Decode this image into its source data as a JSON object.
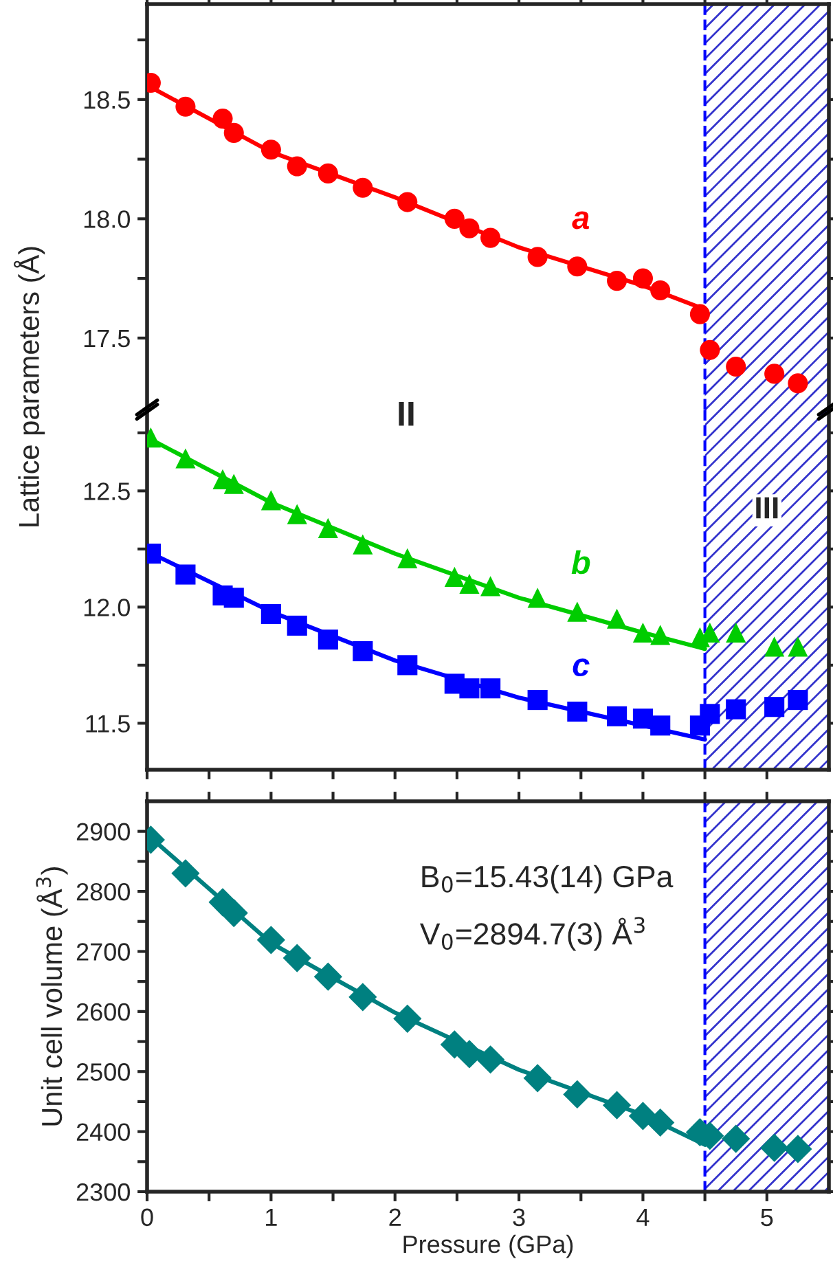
{
  "chart_data": [
    {
      "type": "scatter",
      "ylabel": "Lattice parameters (Å)",
      "xlim": [
        0,
        5.5
      ],
      "ylim": [
        17.2,
        18.9
      ],
      "tick_labels": "y",
      "grid": false,
      "legend": false,
      "xticks": [
        0,
        {
          "value": 0.5,
          "label": null
        },
        1,
        {
          "value": 1.5,
          "label": null
        },
        2,
        {
          "value": 2.5,
          "label": null
        },
        3,
        {
          "value": 3.5,
          "label": null
        },
        4,
        {
          "value": 4.5,
          "label": null
        },
        5
      ],
      "yticks": [
        {
          "value": 17.5,
          "label": "17.5"
        },
        {
          "value": 17.75,
          "label": null
        },
        {
          "value": 18.0,
          "label": "18.0"
        },
        {
          "value": 18.25,
          "label": null
        },
        {
          "value": 18.5,
          "label": "18.5"
        },
        {
          "value": 18.75,
          "label": null
        }
      ],
      "x": [
        0.03,
        0.31,
        0.61,
        0.7,
        1.0,
        1.21,
        1.46,
        1.74,
        2.1,
        2.48,
        2.6,
        2.77,
        3.15,
        3.47,
        3.79,
        4.0,
        4.14,
        4.46,
        4.54,
        4.75,
        5.06,
        5.25
      ],
      "series": [
        {
          "name": "a",
          "marker": "circle",
          "color": "#ff0000",
          "values": [
            18.57,
            18.47,
            18.42,
            18.36,
            18.29,
            18.22,
            18.19,
            18.13,
            18.07,
            18.0,
            17.96,
            17.92,
            17.84,
            17.8,
            17.74,
            17.75,
            17.7,
            17.6,
            17.45,
            17.38,
            17.35,
            17.31
          ]
        },
        {
          "type": "line",
          "color": "#ff0000",
          "x": [
            0,
            1,
            2,
            3,
            4,
            4.5
          ],
          "values": [
            18.56,
            18.28,
            18.09,
            17.88,
            17.72,
            17.62
          ]
        }
      ],
      "bands": [
        {
          "axis": "x",
          "from": 4.5,
          "to": 5.5,
          "color": "#3333cc"
        }
      ],
      "ref_lines": [
        {
          "axis": "x",
          "value": 4.5,
          "color": "#0000ff",
          "line_style": "dashed"
        }
      ]
    },
    {
      "type": "scatter",
      "xlim": [
        0,
        5.5
      ],
      "ylim": [
        11.3,
        12.85
      ],
      "tick_labels": "y",
      "grid": false,
      "legend": false,
      "xticks": [
        0,
        {
          "value": 0.5,
          "label": null
        },
        1,
        {
          "value": 1.5,
          "label": null
        },
        2,
        {
          "value": 2.5,
          "label": null
        },
        3,
        {
          "value": 3.5,
          "label": null
        },
        4,
        {
          "value": 4.5,
          "label": null
        },
        5
      ],
      "yticks": [
        {
          "value": 11.5,
          "label": "11.5"
        },
        {
          "value": 11.75,
          "label": null
        },
        {
          "value": 12.0,
          "label": "12.0"
        },
        {
          "value": 12.25,
          "label": null
        },
        {
          "value": 12.5,
          "label": "12.5"
        },
        {
          "value": 12.75,
          "label": null
        }
      ],
      "x": [
        0.03,
        0.31,
        0.61,
        0.7,
        1.0,
        1.21,
        1.46,
        1.74,
        2.1,
        2.48,
        2.6,
        2.77,
        3.15,
        3.47,
        3.79,
        4.0,
        4.14,
        4.46,
        4.54,
        4.75,
        5.06,
        5.25
      ],
      "annotations": [
        "II"
      ],
      "series": [
        {
          "name": "b",
          "marker": "triangle",
          "color": "#00cc00",
          "values": [
            12.73,
            12.64,
            12.55,
            12.53,
            12.46,
            12.4,
            12.34,
            12.27,
            12.21,
            12.13,
            12.1,
            12.09,
            12.04,
            11.98,
            11.95,
            11.89,
            11.88,
            11.87,
            11.89,
            11.89,
            11.83,
            11.83
          ]
        },
        {
          "type": "line",
          "color": "#00cc00",
          "x": [
            0,
            1,
            2,
            3,
            4,
            4.5
          ],
          "values": [
            12.73,
            12.45,
            12.23,
            12.04,
            11.89,
            11.82
          ]
        },
        {
          "name": "c",
          "marker": "square",
          "color": "#0000ff",
          "values": [
            12.23,
            12.14,
            12.05,
            12.04,
            11.97,
            11.92,
            11.86,
            11.81,
            11.75,
            11.67,
            11.65,
            11.65,
            11.6,
            11.55,
            11.53,
            11.52,
            11.49,
            11.49,
            11.54,
            11.56,
            11.57,
            11.6
          ]
        },
        {
          "type": "line",
          "color": "#0000ff",
          "x": [
            0,
            1,
            2,
            3,
            4,
            4.5
          ],
          "values": [
            12.24,
            11.98,
            11.77,
            11.61,
            11.49,
            11.43
          ]
        }
      ],
      "bands": [
        {
          "axis": "x",
          "from": 4.5,
          "to": 5.5,
          "label": "III",
          "color": "#3333cc"
        }
      ],
      "ref_lines": [
        {
          "axis": "x",
          "value": 4.5,
          "color": "#0000ff",
          "line_style": "dashed"
        }
      ]
    },
    {
      "type": "scatter",
      "xlabel": "Pressure (GPa)",
      "ylabel": "Unit cell volume (Å$^{3}$)",
      "xlim": [
        0,
        5.5
      ],
      "ylim": [
        2300,
        2950
      ],
      "grid": false,
      "legend": false,
      "xticks": [
        0,
        {
          "value": 0.5,
          "label": null
        },
        1,
        {
          "value": 1.5,
          "label": null
        },
        2,
        {
          "value": 2.5,
          "label": null
        },
        3,
        {
          "value": 3.5,
          "label": null
        },
        4,
        {
          "value": 4.5,
          "label": null
        },
        5
      ],
      "yticks": [
        2300,
        {
          "value": 2350,
          "label": null
        },
        2400,
        {
          "value": 2450,
          "label": null
        },
        2500,
        {
          "value": 2550,
          "label": null
        },
        2600,
        {
          "value": 2650,
          "label": null
        },
        2700,
        {
          "value": 2750,
          "label": null
        },
        2800,
        {
          "value": 2850,
          "label": null
        },
        2900
      ],
      "x": [
        0.03,
        0.31,
        0.61,
        0.7,
        1.0,
        1.21,
        1.46,
        1.74,
        2.1,
        2.48,
        2.6,
        2.77,
        3.15,
        3.47,
        3.79,
        4.0,
        4.14,
        4.46,
        4.54,
        4.75,
        5.06,
        5.25
      ],
      "annotations": [
        "B$_{0}$=15.43(14) GPa",
        "V$_{0}$=2894.7(3) Å$^{3}$"
      ],
      "series": [
        {
          "marker": "diamond",
          "color": "#008080",
          "values": [
            2886,
            2830,
            2782,
            2764,
            2719,
            2689,
            2658,
            2624,
            2588,
            2545,
            2529,
            2520,
            2489,
            2462,
            2444,
            2426,
            2415,
            2399,
            2393,
            2388,
            2373,
            2371
          ]
        },
        {
          "type": "line",
          "color": "#008080",
          "x": [
            0,
            1,
            2,
            3,
            4,
            4.5
          ],
          "values": [
            2895,
            2714,
            2598,
            2503,
            2428,
            2378
          ]
        }
      ],
      "bands": [
        {
          "axis": "x",
          "from": 4.5,
          "to": 5.5,
          "color": "#3333cc"
        }
      ],
      "ref_lines": [
        {
          "axis": "x",
          "value": 4.5,
          "color": "#0000ff",
          "line_style": "dashed"
        }
      ]
    }
  ]
}
